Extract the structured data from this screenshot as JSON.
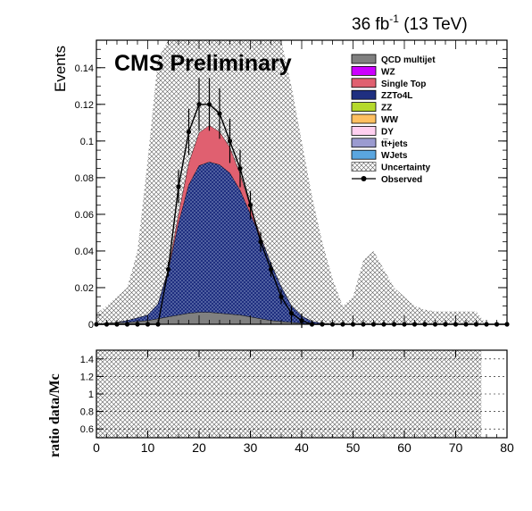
{
  "header": {
    "lumi_prefix": "36 fb",
    "lumi_exp": "-1",
    "lumi_suffix": " (13 TeV)",
    "cms_label": "CMS Preliminary"
  },
  "colors": {
    "qcd": "#808080",
    "wz": "#cc00ff",
    "single_top": "#e06070",
    "zzto4l": "#1f2f80",
    "zz": "#b5d92b",
    "ww": "#ffc060",
    "dy": "#ffd0f0",
    "ttjets": "#9b9bd0",
    "wjets": "#5aa6e0",
    "uncertainty": "#555555",
    "observed": "#000000"
  },
  "chart_data": [
    {
      "type": "area",
      "ylabel": "Events",
      "xlim": [
        0,
        80
      ],
      "ylim": [
        0,
        0.155
      ],
      "yticks": [
        "0",
        "0.02",
        "0.04",
        "0.06",
        "0.08",
        "0.1",
        "0.12",
        "0.14"
      ],
      "legend_position": "top-right",
      "legend": [
        {
          "name": "QCD multijet",
          "color_key": "qcd",
          "style": "box"
        },
        {
          "name": "WZ",
          "color_key": "wz",
          "style": "box"
        },
        {
          "name": "Single Top",
          "color_key": "single_top",
          "style": "box"
        },
        {
          "name": "ZZTo4L",
          "color_key": "zzto4l",
          "style": "box"
        },
        {
          "name": "ZZ",
          "color_key": "zz",
          "style": "box"
        },
        {
          "name": "WW",
          "color_key": "ww",
          "style": "box"
        },
        {
          "name": "DY",
          "color_key": "dy",
          "style": "box"
        },
        {
          "name": "tt̅+jets",
          "color_key": "ttjets",
          "style": "box"
        },
        {
          "name": "WJets",
          "color_key": "wjets",
          "style": "box"
        },
        {
          "name": "Uncertainty",
          "color_key": "uncertainty",
          "style": "hatch"
        },
        {
          "name": "Observed",
          "color_key": "observed",
          "style": "marker"
        }
      ],
      "x": [
        0,
        2,
        4,
        6,
        8,
        10,
        12,
        14,
        16,
        18,
        20,
        22,
        24,
        26,
        28,
        30,
        32,
        34,
        36,
        38,
        40,
        42,
        44,
        46,
        48,
        50,
        52,
        54,
        56,
        58,
        60,
        62,
        64,
        66,
        68,
        70,
        72,
        74,
        76,
        78,
        80
      ],
      "series": [
        {
          "name": "QCD multijet",
          "values": [
            0,
            0.0005,
            0.001,
            0.001,
            0.0015,
            0.002,
            0.003,
            0.004,
            0.005,
            0.006,
            0.0065,
            0.0065,
            0.006,
            0.0055,
            0.005,
            0.004,
            0.003,
            0.002,
            0.0015,
            0.001,
            0.0005,
            0,
            0,
            0,
            0,
            0,
            0,
            0,
            0,
            0,
            0,
            0,
            0,
            0,
            0,
            0,
            0,
            0,
            0,
            0,
            0
          ]
        },
        {
          "name": "ZZTo4L",
          "values": [
            0,
            0,
            0,
            0.001,
            0.002,
            0.003,
            0.008,
            0.025,
            0.05,
            0.07,
            0.08,
            0.082,
            0.081,
            0.077,
            0.068,
            0.056,
            0.044,
            0.031,
            0.019,
            0.009,
            0.004,
            0.0015,
            0.0005,
            0,
            0,
            0,
            0,
            0,
            0,
            0,
            0,
            0,
            0,
            0,
            0,
            0,
            0,
            0,
            0,
            0,
            0
          ]
        },
        {
          "name": "Single Top",
          "values": [
            0,
            0,
            0,
            0,
            0,
            0,
            0,
            0.001,
            0.005,
            0.012,
            0.018,
            0.02,
            0.018,
            0.014,
            0.009,
            0.004,
            0.001,
            0,
            0,
            0,
            0,
            0,
            0,
            0,
            0,
            0,
            0,
            0,
            0,
            0,
            0,
            0,
            0,
            0,
            0,
            0,
            0,
            0,
            0,
            0,
            0
          ]
        },
        {
          "name": "Uncertainty",
          "values": [
            0.006,
            0.01,
            0.015,
            0.02,
            0.04,
            0.09,
            0.145,
            0.155,
            0.155,
            0.155,
            0.155,
            0.155,
            0.155,
            0.155,
            0.155,
            0.155,
            0.155,
            0.155,
            0.155,
            0.13,
            0.1,
            0.07,
            0.045,
            0.025,
            0.01,
            0.015,
            0.035,
            0.04,
            0.03,
            0.02,
            0.015,
            0.01,
            0.008,
            0.007,
            0.007,
            0.007,
            0.007,
            0.007,
            0,
            0,
            0
          ]
        },
        {
          "name": "Observed",
          "values": [
            0,
            0,
            0,
            0,
            0,
            0,
            0,
            0.03,
            0.075,
            0.105,
            0.12,
            0.12,
            0.115,
            0.1,
            0.085,
            0.065,
            0.045,
            0.03,
            0.015,
            0.006,
            0.002,
            0,
            0,
            0,
            0,
            0,
            0,
            0,
            0,
            0,
            0,
            0,
            0,
            0,
            0,
            0,
            0,
            0,
            0,
            0,
            0
          ]
        }
      ]
    },
    {
      "type": "area",
      "ylabel": "ratio data/Mc",
      "xlim": [
        0,
        80
      ],
      "ylim": [
        0.5,
        1.5
      ],
      "yticks": [
        "0.6",
        "0.8",
        "1",
        "1.2",
        "1.4"
      ],
      "xticks": [
        "0",
        "10",
        "20",
        "30",
        "40",
        "50",
        "60",
        "70",
        "80"
      ],
      "x": [
        0,
        75
      ],
      "series": [
        {
          "name": "Uncertainty",
          "values": [
            1.5,
            1.5
          ]
        }
      ]
    }
  ]
}
